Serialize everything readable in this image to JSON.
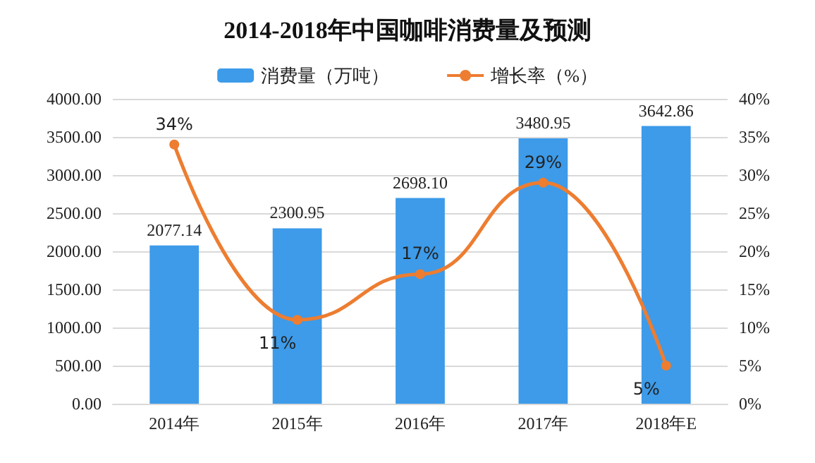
{
  "chart_data": {
    "type": "bar",
    "title": "2014-2018年中国咖啡消费量及预测",
    "categories": [
      "2014年",
      "2015年",
      "2016年",
      "2017年",
      "2018年E"
    ],
    "series": [
      {
        "name": "消费量（万吨）",
        "color": "#3d9be9",
        "values": [
          2077.14,
          2300.95,
          2698.1,
          3480.95,
          3642.86
        ],
        "value_labels": [
          "2077.14",
          "2300.95",
          "2698.10",
          "3480.95",
          "3642.86"
        ]
      },
      {
        "name": "增长率（%）",
        "type": "line",
        "axis": "y2",
        "color": "#ed7d31",
        "marker": "circle",
        "values": [
          34,
          11,
          17,
          29,
          5
        ],
        "value_labels": [
          "34%",
          "11%",
          "17%",
          "29%",
          "5%"
        ]
      }
    ],
    "ylim": [
      0,
      4000
    ],
    "yticks": [
      {
        "value": 0,
        "label": "0.00"
      },
      {
        "value": 500,
        "label": "500.00"
      },
      {
        "value": 1000,
        "label": "1000.00"
      },
      {
        "value": 1500,
        "label": "1500.00"
      },
      {
        "value": 2000,
        "label": "2000.00"
      },
      {
        "value": 2500,
        "label": "2500.00"
      },
      {
        "value": 3000,
        "label": "3000.00"
      },
      {
        "value": 3500,
        "label": "3500.00"
      },
      {
        "value": 4000,
        "label": "4000.00"
      }
    ],
    "y2lim": [
      0,
      40
    ],
    "y2ticks": [
      {
        "value": 0,
        "label": "0%"
      },
      {
        "value": 5,
        "label": "5%"
      },
      {
        "value": 10,
        "label": "10%"
      },
      {
        "value": 15,
        "label": "15%"
      },
      {
        "value": 20,
        "label": "20%"
      },
      {
        "value": 25,
        "label": "25%"
      },
      {
        "value": 30,
        "label": "30%"
      },
      {
        "value": 35,
        "label": "35%"
      },
      {
        "value": 40,
        "label": "40%"
      }
    ],
    "grid": "y",
    "legend": "top"
  }
}
